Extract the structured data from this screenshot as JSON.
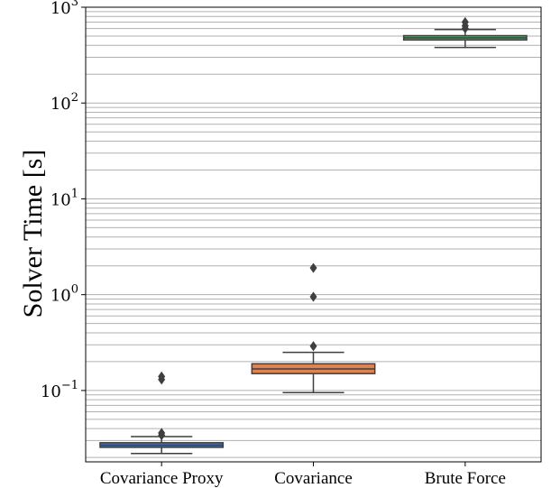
{
  "chart_data": {
    "type": "box",
    "ylabel": "Solver Time [s]",
    "yscale": "log",
    "ylim": [
      0.018,
      1000
    ],
    "yticks": [
      {
        "value": 0.1,
        "base": "10",
        "exp": "−1"
      },
      {
        "value": 1,
        "base": "10",
        "exp": "0"
      },
      {
        "value": 10,
        "base": "10",
        "exp": "1"
      },
      {
        "value": 100,
        "base": "10",
        "exp": "2"
      },
      {
        "value": 1000,
        "base": "10",
        "exp": "3"
      }
    ],
    "grid": "y-major-and-minor",
    "categories": [
      "Covariance Proxy",
      "Covariance",
      "Brute Force"
    ],
    "boxes": [
      {
        "category": "Covariance Proxy",
        "whisker_low": 0.022,
        "q1": 0.0255,
        "median": 0.0268,
        "q3": 0.0285,
        "whisker_high": 0.033,
        "outliers": [
          0.034,
          0.036,
          0.13,
          0.14
        ],
        "color": "#4c72b0"
      },
      {
        "category": "Covariance",
        "whisker_low": 0.095,
        "q1": 0.15,
        "median": 0.168,
        "q3": 0.19,
        "whisker_high": 0.25,
        "outliers": [
          0.29,
          0.95,
          1.9
        ],
        "color": "#dd8452"
      },
      {
        "category": "Brute Force",
        "whisker_low": 380,
        "q1": 455,
        "median": 478,
        "q3": 505,
        "whisker_high": 585,
        "outliers": [
          600,
          640,
          700
        ],
        "color": "#55a868"
      }
    ]
  }
}
